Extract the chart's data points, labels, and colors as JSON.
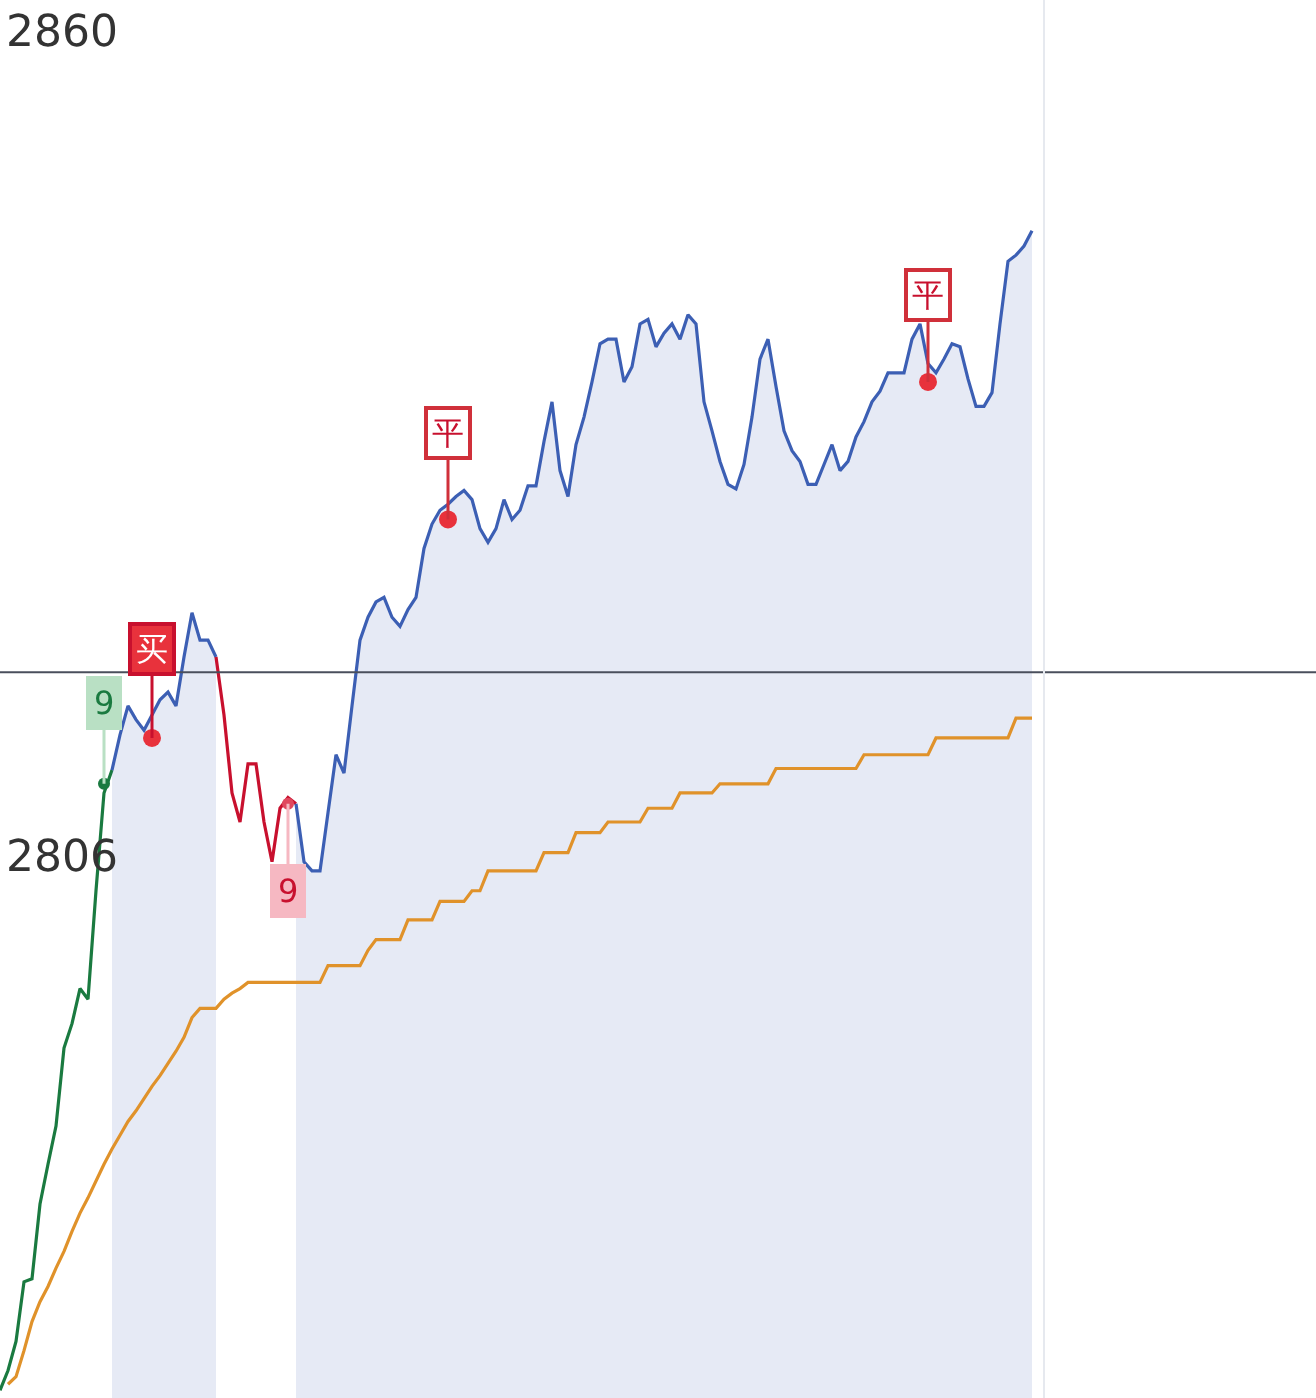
{
  "chart_data": {
    "type": "line",
    "categories": [
      null,
      null,
      null,
      null,
      null,
      null,
      null,
      null,
      null,
      null,
      null,
      null,
      null,
      null,
      null,
      null,
      null,
      null,
      null,
      null,
      null,
      null,
      null,
      null,
      null,
      null,
      null,
      null,
      null,
      null,
      null,
      null,
      null,
      null,
      null,
      null,
      null,
      null,
      null,
      null,
      null,
      null,
      null,
      null,
      null,
      null,
      null,
      null,
      null,
      null,
      null,
      null,
      null,
      null,
      null,
      null,
      null,
      null,
      null,
      null,
      null,
      null,
      null,
      null,
      null,
      null,
      null,
      null,
      null,
      null,
      null,
      null,
      null,
      null,
      null,
      null,
      null,
      null,
      null,
      null,
      null,
      null,
      null,
      null,
      null,
      null,
      null,
      null,
      null,
      null,
      null,
      null,
      null,
      null,
      null,
      null,
      null,
      null,
      null,
      null,
      null,
      null,
      null,
      null,
      null,
      null,
      null,
      null,
      null,
      null,
      null,
      null,
      null,
      null,
      null,
      null,
      null,
      null,
      null,
      null,
      null,
      null,
      null,
      null,
      null,
      null,
      null,
      null,
      null,
      null
    ],
    "ylim": [
      2770.5,
      2862
    ],
    "yticks": [
      2860,
      2806
    ],
    "tick_labels": "y",
    "ref_lines": [
      {
        "axis": "y",
        "value": 2818.0,
        "color": "#4a4f5c"
      }
    ],
    "annotations": [
      "9",
      "9"
    ],
    "series": [
      {
        "color": "#1a7a40",
        "values": [
          2771.0,
          2772.3,
          2774.2,
          2778.1,
          2778.3,
          2783.2,
          2785.8,
          2788.3,
          2793.4,
          2795.0,
          2797.3,
          2796.6,
          2803.7,
          2810.1,
          2811.6,
          null,
          null,
          null,
          null,
          null,
          null,
          null,
          null,
          null,
          null,
          null,
          null,
          null,
          null,
          null,
          null,
          null,
          null,
          null,
          null,
          null,
          null,
          null,
          null,
          null,
          null,
          null,
          null,
          null,
          null,
          null,
          null,
          null,
          null,
          null,
          null,
          null,
          null,
          null,
          null,
          null,
          null,
          null,
          null,
          null,
          null,
          null,
          null,
          null,
          null,
          null,
          null,
          null,
          null,
          null,
          null,
          null,
          null,
          null,
          null,
          null,
          null,
          null,
          null,
          null,
          null,
          null,
          null,
          null,
          null,
          null,
          null,
          null,
          null,
          null,
          null,
          null,
          null,
          null,
          null,
          null,
          null,
          null,
          null,
          null,
          null,
          null,
          null,
          null,
          null,
          null,
          null,
          null,
          null,
          null,
          null,
          null,
          null,
          null,
          null,
          null,
          null,
          null,
          null,
          null,
          null,
          null,
          null,
          null,
          null,
          null,
          null,
          null,
          null,
          null
        ]
      },
      {
        "type": "area",
        "color": "#3c5fb4",
        "values": [
          null,
          null,
          null,
          null,
          null,
          null,
          null,
          null,
          null,
          null,
          null,
          null,
          null,
          null,
          2811.6,
          2813.9,
          2815.8,
          2814.9,
          2814.2,
          2815.2,
          2816.2,
          2816.7,
          2815.8,
          2819.0,
          2821.9,
          2820.1,
          2820.1,
          2819.0,
          null,
          null,
          null,
          null,
          null,
          null,
          null,
          null,
          null,
          null,
          null,
          null,
          null,
          null,
          null,
          null,
          null,
          null,
          null,
          null,
          null,
          null,
          null,
          null,
          null,
          null,
          null,
          null,
          null,
          null,
          null,
          null,
          null,
          null,
          null,
          null,
          null,
          null,
          null,
          null,
          null,
          null,
          null,
          null,
          null,
          null,
          null,
          null,
          null,
          null,
          null,
          null,
          null,
          null,
          null,
          null,
          null,
          null,
          null,
          null,
          null,
          null,
          null,
          null,
          null,
          null,
          null,
          null,
          null,
          null,
          null,
          null,
          null,
          null,
          null,
          null,
          null,
          null,
          null,
          null,
          null,
          null,
          null,
          null,
          null,
          null,
          null,
          null,
          null,
          null,
          null,
          null,
          null,
          null,
          null,
          null,
          null,
          null,
          null,
          null,
          null,
          null
        ]
      },
      {
        "color": "#c8102e",
        "values": [
          null,
          null,
          null,
          null,
          null,
          null,
          null,
          null,
          null,
          null,
          null,
          null,
          null,
          null,
          null,
          null,
          null,
          null,
          null,
          null,
          null,
          null,
          null,
          null,
          null,
          null,
          null,
          2819.0,
          2815.2,
          2810.1,
          2808.2,
          2812.0,
          2812.0,
          2808.2,
          2805.6,
          2809.1,
          2809.8,
          2809.4,
          null,
          null,
          null,
          null,
          null,
          null,
          null,
          null,
          null,
          null,
          null,
          null,
          null,
          null,
          null,
          null,
          null,
          null,
          null,
          null,
          null,
          null,
          null,
          null,
          null,
          null,
          null,
          null,
          null,
          null,
          null,
          null,
          null,
          null,
          null,
          null,
          null,
          null,
          null,
          null,
          null,
          null,
          null,
          null,
          null,
          null,
          null,
          null,
          null,
          null,
          null,
          null,
          null,
          null,
          null,
          null,
          null,
          null,
          null,
          null,
          null,
          null,
          null,
          null,
          null,
          null,
          null,
          null,
          null,
          null,
          null,
          null,
          null,
          null,
          null,
          null,
          null,
          null,
          null,
          null,
          null,
          null,
          null,
          null,
          null,
          null,
          null,
          null,
          null,
          null,
          null,
          null
        ]
      },
      {
        "type": "area",
        "color": "#3c5fb4",
        "values": [
          null,
          null,
          null,
          null,
          null,
          null,
          null,
          null,
          null,
          null,
          null,
          null,
          null,
          null,
          null,
          null,
          null,
          null,
          null,
          null,
          null,
          null,
          null,
          null,
          null,
          null,
          null,
          null,
          null,
          null,
          null,
          null,
          null,
          null,
          null,
          null,
          null,
          2809.4,
          2805.6,
          2805.0,
          2805.0,
          2808.8,
          2812.6,
          2811.4,
          2815.8,
          2820.1,
          2821.6,
          2822.6,
          2822.9,
          2821.6,
          2821.0,
          2822.1,
          2822.9,
          2826.1,
          2827.7,
          2828.6,
          2829.0,
          2829.5,
          2829.9,
          2829.3,
          2827.4,
          2826.5,
          2827.4,
          2829.3,
          2828.0,
          2828.6,
          2830.2,
          2830.2,
          2833.1,
          2835.7,
          2831.2,
          2829.5,
          2832.9,
          2834.7,
          2837.0,
          2839.5,
          2839.8,
          2839.8,
          2837.0,
          2838.0,
          2840.8,
          2841.1,
          2839.3,
          2840.2,
          2840.8,
          2839.8,
          2841.4,
          2840.8,
          2835.7,
          2833.8,
          2831.8,
          2830.3,
          2830.0,
          2831.6,
          2834.7,
          2838.5,
          2839.8,
          2836.7,
          2833.8,
          2832.5,
          2831.8,
          2830.3,
          2830.3,
          2831.6,
          2832.9,
          2831.2,
          2831.8,
          2833.4,
          2834.4,
          2835.7,
          2836.4,
          2837.6,
          2837.6,
          2837.6,
          2839.8,
          2840.8,
          2838.2,
          2837.6,
          2838.5,
          2839.5,
          2839.3,
          2837.2,
          2835.4,
          2835.4,
          2836.3,
          2840.8,
          2844.9,
          2845.3,
          2845.9,
          2846.9
        ]
      },
      {
        "color": "#e0922a",
        "values": [
          null,
          2771.4,
          2771.9,
          2773.6,
          2775.5,
          2776.8,
          2777.8,
          2779.0,
          2780.1,
          2781.4,
          2782.6,
          2783.6,
          2784.7,
          2785.8,
          2786.8,
          2787.7,
          2788.6,
          2789.3,
          2790.1,
          2790.9,
          2791.6,
          2792.4,
          2793.2,
          2794.1,
          2795.4,
          2796.0,
          2796.0,
          2796.0,
          2796.6,
          2797.0,
          2797.3,
          2797.7,
          2797.7,
          2797.7,
          2797.7,
          2797.7,
          2797.7,
          2797.7,
          2797.7,
          2797.7,
          2797.7,
          2798.8,
          2798.8,
          2798.8,
          2798.8,
          2798.8,
          2799.8,
          2800.5,
          2800.5,
          2800.5,
          2800.5,
          2801.8,
          2801.8,
          2801.8,
          2801.8,
          2803.0,
          2803.0,
          2803.0,
          2803.0,
          2803.7,
          2803.7,
          2805.0,
          2805.0,
          2805.0,
          2805.0,
          2805.0,
          2805.0,
          2805.0,
          2806.2,
          2806.2,
          2806.2,
          2806.2,
          2807.5,
          2807.5,
          2807.5,
          2807.5,
          2808.2,
          2808.2,
          2808.2,
          2808.2,
          2808.2,
          2809.1,
          2809.1,
          2809.1,
          2809.1,
          2810.1,
          2810.1,
          2810.1,
          2810.1,
          2810.1,
          2810.7,
          2810.7,
          2810.7,
          2810.7,
          2810.7,
          2810.7,
          2810.7,
          2811.7,
          2811.7,
          2811.7,
          2811.7,
          2811.7,
          2811.7,
          2811.7,
          2811.7,
          2811.7,
          2811.7,
          2811.7,
          2812.6,
          2812.6,
          2812.6,
          2812.6,
          2812.6,
          2812.6,
          2812.6,
          2812.6,
          2812.6,
          2813.7,
          2813.7,
          2813.7,
          2813.7,
          2813.7,
          2813.7,
          2813.7,
          2813.7,
          2813.7,
          2813.7,
          2815.0,
          2815.0,
          2815.0
        ]
      },
      {
        "type": "scatter",
        "color": "#1a7a40",
        "values": [
          null,
          null,
          null,
          null,
          null,
          null,
          null,
          null,
          null,
          null,
          null,
          null,
          null,
          2810.7,
          null,
          null,
          null,
          null,
          null,
          null,
          null,
          null,
          null,
          null,
          null,
          null,
          null,
          null,
          null,
          null,
          null,
          null,
          null,
          null,
          null,
          null,
          null,
          null,
          null,
          null,
          null,
          null,
          null,
          null,
          null,
          null,
          null,
          null,
          null,
          null,
          null,
          null,
          null,
          null,
          null,
          null,
          null,
          null,
          null,
          null,
          null,
          null,
          null,
          null,
          null,
          null,
          null,
          null,
          null,
          null,
          null,
          null,
          null,
          null,
          null,
          null,
          null,
          null,
          null,
          null,
          null,
          null,
          null,
          null,
          null,
          null,
          null,
          null,
          null,
          null,
          null,
          null,
          null,
          null,
          null,
          null,
          null,
          null,
          null,
          null,
          null,
          null,
          null,
          null,
          null,
          null,
          null,
          null,
          null,
          null,
          null,
          null,
          null,
          null,
          null,
          null,
          null,
          null,
          null,
          null,
          null,
          null,
          null,
          null,
          null,
          null,
          null,
          null,
          null,
          null
        ]
      },
      {
        "type": "scatter",
        "color": "#e0485e",
        "values": [
          null,
          null,
          null,
          null,
          null,
          null,
          null,
          null,
          null,
          null,
          null,
          null,
          null,
          null,
          null,
          null,
          null,
          null,
          null,
          null,
          null,
          null,
          null,
          null,
          null,
          null,
          null,
          null,
          null,
          null,
          null,
          null,
          null,
          null,
          null,
          null,
          2809.4,
          null,
          null,
          null,
          null,
          null,
          null,
          null,
          null,
          null,
          null,
          null,
          null,
          null,
          null,
          null,
          null,
          null,
          null,
          null,
          null,
          null,
          null,
          null,
          null,
          null,
          null,
          null,
          null,
          null,
          null,
          null,
          null,
          null,
          null,
          null,
          null,
          null,
          null,
          null,
          null,
          null,
          null,
          null,
          null,
          null,
          null,
          null,
          null,
          null,
          null,
          null,
          null,
          null,
          null,
          null,
          null,
          null,
          null,
          null,
          null,
          null,
          null,
          null,
          null,
          null,
          null,
          null,
          null,
          null,
          null,
          null,
          null,
          null,
          null,
          null,
          null,
          null,
          null,
          null,
          null,
          null,
          null,
          null,
          null,
          null,
          null,
          null,
          null,
          null,
          null,
          null,
          null,
          null
        ]
      },
      {
        "type": "scatter",
        "color": "#e8323c",
        "values": [
          null,
          null,
          null,
          null,
          null,
          null,
          null,
          null,
          null,
          null,
          null,
          null,
          null,
          null,
          null,
          null,
          null,
          null,
          null,
          2813.7,
          null,
          null,
          null,
          null,
          null,
          null,
          null,
          null,
          null,
          null,
          null,
          null,
          null,
          null,
          null,
          null,
          null,
          null,
          null,
          null,
          null,
          null,
          null,
          null,
          null,
          null,
          null,
          null,
          null,
          null,
          null,
          null,
          null,
          null,
          null,
          null,
          2828.0,
          null,
          null,
          null,
          null,
          null,
          null,
          null,
          null,
          null,
          null,
          null,
          null,
          null,
          null,
          null,
          null,
          null,
          null,
          null,
          null,
          null,
          null,
          null,
          null,
          null,
          null,
          null,
          null,
          null,
          null,
          null,
          null,
          null,
          null,
          null,
          null,
          null,
          null,
          null,
          null,
          null,
          null,
          null,
          null,
          null,
          null,
          null,
          null,
          null,
          null,
          null,
          null,
          null,
          null,
          null,
          null,
          null,
          null,
          null,
          2837.0,
          null,
          null,
          null,
          null,
          null,
          null,
          null,
          null,
          null,
          null,
          null,
          null,
          null
        ],
        "value_labels": [
          null,
          null,
          null,
          null,
          null,
          null,
          null,
          null,
          null,
          null,
          null,
          null,
          null,
          null,
          null,
          null,
          null,
          null,
          null,
          "买",
          null,
          null,
          null,
          null,
          null,
          null,
          null,
          null,
          null,
          null,
          null,
          null,
          null,
          null,
          null,
          null,
          null,
          null,
          null,
          null,
          null,
          null,
          null,
          null,
          null,
          null,
          null,
          null,
          null,
          null,
          null,
          null,
          null,
          null,
          null,
          null,
          "平",
          null,
          null,
          null,
          null,
          null,
          null,
          null,
          null,
          null,
          null,
          null,
          null,
          null,
          null,
          null,
          null,
          null,
          null,
          null,
          null,
          null,
          null,
          null,
          null,
          null,
          null,
          null,
          null,
          null,
          null,
          null,
          null,
          null,
          null,
          null,
          null,
          null,
          null,
          null,
          null,
          null,
          null,
          null,
          null,
          null,
          null,
          null,
          null,
          null,
          null,
          null,
          null,
          null,
          null,
          null,
          null,
          null,
          null,
          null,
          "平",
          null,
          null,
          null,
          null,
          null,
          null,
          null,
          null,
          null,
          null,
          null,
          null,
          null
        ]
      }
    ]
  }
}
